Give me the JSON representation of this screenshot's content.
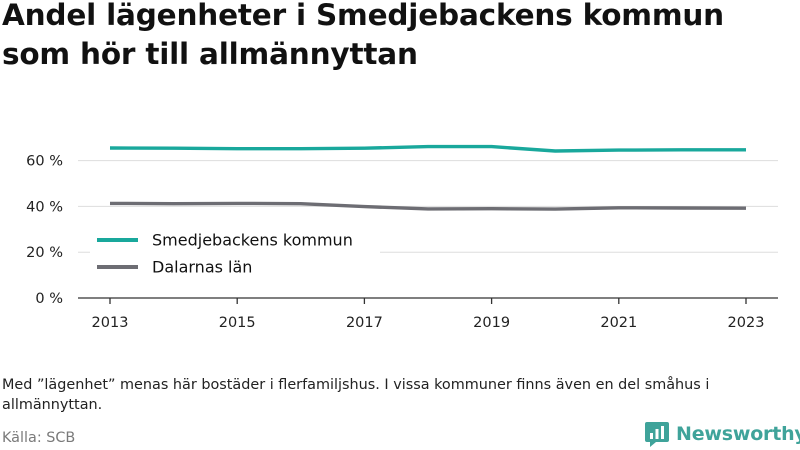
{
  "title": "Andel lägenheter i Smedjebackens kommun som hör till allmännyttan",
  "note": "Med ”lägenhet” menas här bostäder i flerfamiljshus. I vissa kommuner finns även en del småhus i allmännyttan.",
  "source": "Källa: SCB",
  "brand": {
    "name": "Newsworthy",
    "icon": "newsworthy-logo-icon",
    "color": "#3fa39a"
  },
  "chart_data": {
    "type": "line",
    "x": [
      2013,
      2014,
      2015,
      2016,
      2017,
      2018,
      2019,
      2020,
      2021,
      2022,
      2023
    ],
    "x_ticks": [
      "2013",
      "2015",
      "2017",
      "2019",
      "2021",
      "2023"
    ],
    "y_ticks": [
      "0 %",
      "20 %",
      "40 %",
      "60 %"
    ],
    "ylim": [
      0,
      70
    ],
    "grid": true,
    "legend_position": "left",
    "series": [
      {
        "name": "Smedjebackens kommun",
        "color": "#19a89c",
        "values": [
          65.5,
          65.4,
          65.2,
          65.2,
          65.4,
          66.1,
          66.1,
          64.2,
          64.6,
          64.7,
          64.7
        ]
      },
      {
        "name": "Dalarnas län",
        "color": "#6d6d73",
        "values": [
          41.3,
          41.2,
          41.3,
          41.2,
          39.9,
          38.9,
          39.0,
          38.8,
          39.4,
          39.3,
          39.2
        ]
      }
    ]
  }
}
